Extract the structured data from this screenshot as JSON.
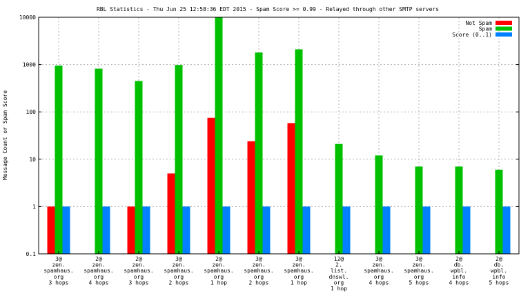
{
  "chart_data": {
    "type": "bar",
    "title": "RBL Statistics - Thu Jun 25 12:58:36 EDT 2015 - Spam Score >= 0.99 - Relayed through other SMTP servers",
    "ylabel": "Message Count or Spam Score",
    "xlabel": "",
    "yscale": "log",
    "ylim": [
      0.1,
      10000
    ],
    "yticks": [
      "0.1",
      "1",
      "10",
      "100",
      "1000",
      "10000"
    ],
    "grid": true,
    "legend_position": "top-right",
    "categories": [
      [
        "3@",
        "zen.",
        "spamhaus.",
        "org",
        "3 hops"
      ],
      [
        "2@",
        "zen.",
        "spamhaus.",
        "org",
        "4 hops"
      ],
      [
        "2@",
        "zen.",
        "spamhaus.",
        "org",
        "3 hops"
      ],
      [
        "3@",
        "zen.",
        "spamhaus.",
        "org",
        "2 hops"
      ],
      [
        "2@",
        "zen.",
        "spamhaus.",
        "org",
        "1 hop"
      ],
      [
        "3@",
        "zen.",
        "spamhaus.",
        "org",
        "2 hops"
      ],
      [
        "3@",
        "zen.",
        "spamhaus.",
        "org",
        "1 hop"
      ],
      [
        "12@",
        "2.",
        "list.",
        "dnswl.",
        "org",
        "1 hop"
      ],
      [
        "3@",
        "zen.",
        "spamhaus.",
        "org",
        "4 hops"
      ],
      [
        "3@",
        "zen.",
        "spamhaus.",
        "org",
        "5 hops"
      ],
      [
        "2@",
        "db.",
        "wpbl.",
        "info",
        "4 hops"
      ],
      [
        "2@",
        "db.",
        "wpbl.",
        "info",
        "5 hops"
      ]
    ],
    "series": [
      {
        "name": "Not Spam",
        "color": "#ff0000",
        "values": [
          1,
          null,
          1,
          5,
          75,
          24,
          58,
          null,
          null,
          null,
          null,
          null
        ]
      },
      {
        "name": "Spam",
        "color": "#00c000",
        "values": [
          950,
          820,
          450,
          980,
          10000,
          1800,
          2100,
          21,
          12,
          7,
          7,
          6
        ]
      },
      {
        "name": "Score (0..1)",
        "color": "#0080ff",
        "values": [
          1,
          1,
          1,
          1,
          1,
          1,
          1,
          1,
          1,
          1,
          1,
          1
        ]
      }
    ]
  }
}
